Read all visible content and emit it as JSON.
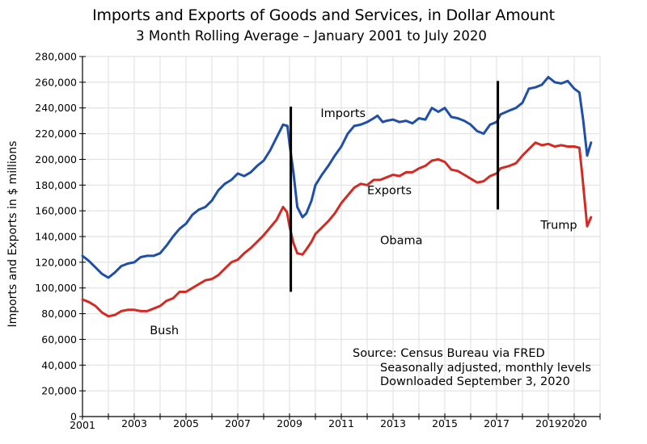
{
  "chart_data": {
    "type": "line",
    "title": "Imports and Exports of Goods and Services, in Dollar Amount",
    "subtitle": "3 Month Rolling Average – January 2001 to July 2020",
    "xlabel": "",
    "ylabel": "Imports and Exports in $ millions",
    "xlim": [
      2001,
      2021
    ],
    "ylim": [
      0,
      280000
    ],
    "grid": true,
    "x_tick_labels": [
      "2001",
      "2003",
      "2005",
      "2007",
      "2009",
      "2011",
      "2013",
      "2015",
      "2017",
      "2019",
      "2020"
    ],
    "x_tick_values": [
      2001,
      2003,
      2005,
      2007,
      2009,
      2011,
      2013,
      2015,
      2017,
      2019,
      2020
    ],
    "x_minor_ticks": [
      2002,
      2004,
      2006,
      2008,
      2010,
      2012,
      2014,
      2016,
      2018,
      2021
    ],
    "y_tick_labels": [
      "0",
      "20,000",
      "40,000",
      "60,000",
      "80,000",
      "100,000",
      "120,000",
      "140,000",
      "160,000",
      "180,000",
      "200,000",
      "220,000",
      "240,000",
      "260,000",
      "280,000"
    ],
    "y_tick_values": [
      0,
      20000,
      40000,
      60000,
      80000,
      100000,
      120000,
      140000,
      160000,
      180000,
      200000,
      220000,
      240000,
      260000,
      280000
    ],
    "series": [
      {
        "name": "Imports",
        "color": "#1f4fa8",
        "points": [
          [
            2001.0,
            125000
          ],
          [
            2001.25,
            121000
          ],
          [
            2001.5,
            116000
          ],
          [
            2001.75,
            111000
          ],
          [
            2002.0,
            108000
          ],
          [
            2002.25,
            112000
          ],
          [
            2002.5,
            117000
          ],
          [
            2002.75,
            119000
          ],
          [
            2003.0,
            120000
          ],
          [
            2003.25,
            124000
          ],
          [
            2003.5,
            125000
          ],
          [
            2003.75,
            125000
          ],
          [
            2004.0,
            127000
          ],
          [
            2004.25,
            133000
          ],
          [
            2004.5,
            140000
          ],
          [
            2004.75,
            146000
          ],
          [
            2005.0,
            150000
          ],
          [
            2005.25,
            157000
          ],
          [
            2005.5,
            161000
          ],
          [
            2005.75,
            163000
          ],
          [
            2006.0,
            168000
          ],
          [
            2006.25,
            176000
          ],
          [
            2006.5,
            181000
          ],
          [
            2006.75,
            184000
          ],
          [
            2007.0,
            189000
          ],
          [
            2007.25,
            187000
          ],
          [
            2007.5,
            190000
          ],
          [
            2007.75,
            195000
          ],
          [
            2008.0,
            199000
          ],
          [
            2008.25,
            207000
          ],
          [
            2008.5,
            217000
          ],
          [
            2008.75,
            227000
          ],
          [
            2008.92,
            226000
          ],
          [
            2009.0,
            212000
          ],
          [
            2009.15,
            190000
          ],
          [
            2009.3,
            163000
          ],
          [
            2009.5,
            155000
          ],
          [
            2009.65,
            158000
          ],
          [
            2009.85,
            168000
          ],
          [
            2010.0,
            180000
          ],
          [
            2010.25,
            188000
          ],
          [
            2010.5,
            195000
          ],
          [
            2010.75,
            203000
          ],
          [
            2011.0,
            210000
          ],
          [
            2011.25,
            220000
          ],
          [
            2011.5,
            226000
          ],
          [
            2011.75,
            227000
          ],
          [
            2012.0,
            229000
          ],
          [
            2012.25,
            232000
          ],
          [
            2012.4,
            234000
          ],
          [
            2012.6,
            229000
          ],
          [
            2012.75,
            230000
          ],
          [
            2013.0,
            231000
          ],
          [
            2013.25,
            229000
          ],
          [
            2013.5,
            230000
          ],
          [
            2013.75,
            228000
          ],
          [
            2014.0,
            232000
          ],
          [
            2014.25,
            231000
          ],
          [
            2014.5,
            240000
          ],
          [
            2014.75,
            237000
          ],
          [
            2015.0,
            240000
          ],
          [
            2015.25,
            233000
          ],
          [
            2015.5,
            232000
          ],
          [
            2015.75,
            230000
          ],
          [
            2016.0,
            227000
          ],
          [
            2016.25,
            222000
          ],
          [
            2016.5,
            220000
          ],
          [
            2016.75,
            227000
          ],
          [
            2017.0,
            229000
          ],
          [
            2017.15,
            235000
          ],
          [
            2017.5,
            238000
          ],
          [
            2017.75,
            240000
          ],
          [
            2018.0,
            244000
          ],
          [
            2018.25,
            255000
          ],
          [
            2018.5,
            256000
          ],
          [
            2018.75,
            258000
          ],
          [
            2019.0,
            264000
          ],
          [
            2019.25,
            260000
          ],
          [
            2019.5,
            259000
          ],
          [
            2019.75,
            261000
          ],
          [
            2020.0,
            255000
          ],
          [
            2020.2,
            252000
          ],
          [
            2020.35,
            230000
          ],
          [
            2020.5,
            203000
          ],
          [
            2020.65,
            213000
          ]
        ]
      },
      {
        "name": "Exports",
        "color": "#d42a24",
        "points": [
          [
            2001.0,
            91000
          ],
          [
            2001.25,
            89000
          ],
          [
            2001.5,
            86000
          ],
          [
            2001.75,
            81000
          ],
          [
            2002.0,
            78000
          ],
          [
            2002.25,
            79000
          ],
          [
            2002.5,
            82000
          ],
          [
            2002.75,
            83000
          ],
          [
            2003.0,
            83000
          ],
          [
            2003.25,
            82000
          ],
          [
            2003.5,
            82000
          ],
          [
            2003.75,
            84000
          ],
          [
            2004.0,
            86000
          ],
          [
            2004.25,
            90000
          ],
          [
            2004.5,
            92000
          ],
          [
            2004.75,
            97000
          ],
          [
            2005.0,
            97000
          ],
          [
            2005.25,
            100000
          ],
          [
            2005.5,
            103000
          ],
          [
            2005.75,
            106000
          ],
          [
            2006.0,
            107000
          ],
          [
            2006.25,
            110000
          ],
          [
            2006.5,
            115000
          ],
          [
            2006.75,
            120000
          ],
          [
            2007.0,
            122000
          ],
          [
            2007.25,
            127000
          ],
          [
            2007.5,
            131000
          ],
          [
            2007.75,
            136000
          ],
          [
            2008.0,
            141000
          ],
          [
            2008.25,
            147000
          ],
          [
            2008.5,
            153000
          ],
          [
            2008.75,
            163000
          ],
          [
            2008.9,
            159000
          ],
          [
            2009.0,
            148000
          ],
          [
            2009.15,
            135000
          ],
          [
            2009.3,
            127000
          ],
          [
            2009.5,
            126000
          ],
          [
            2009.65,
            130000
          ],
          [
            2009.85,
            136000
          ],
          [
            2010.0,
            142000
          ],
          [
            2010.25,
            147000
          ],
          [
            2010.5,
            152000
          ],
          [
            2010.75,
            158000
          ],
          [
            2011.0,
            166000
          ],
          [
            2011.25,
            172000
          ],
          [
            2011.5,
            178000
          ],
          [
            2011.75,
            181000
          ],
          [
            2012.0,
            180000
          ],
          [
            2012.25,
            184000
          ],
          [
            2012.5,
            184000
          ],
          [
            2012.75,
            186000
          ],
          [
            2013.0,
            188000
          ],
          [
            2013.25,
            187000
          ],
          [
            2013.5,
            190000
          ],
          [
            2013.75,
            190000
          ],
          [
            2014.0,
            193000
          ],
          [
            2014.25,
            195000
          ],
          [
            2014.5,
            199000
          ],
          [
            2014.75,
            200000
          ],
          [
            2015.0,
            198000
          ],
          [
            2015.25,
            192000
          ],
          [
            2015.5,
            191000
          ],
          [
            2015.75,
            188000
          ],
          [
            2016.0,
            185000
          ],
          [
            2016.25,
            182000
          ],
          [
            2016.5,
            183000
          ],
          [
            2016.75,
            187000
          ],
          [
            2017.0,
            189000
          ],
          [
            2017.15,
            193000
          ],
          [
            2017.5,
            195000
          ],
          [
            2017.75,
            197000
          ],
          [
            2018.0,
            203000
          ],
          [
            2018.25,
            208000
          ],
          [
            2018.5,
            213000
          ],
          [
            2018.75,
            211000
          ],
          [
            2019.0,
            212000
          ],
          [
            2019.25,
            210000
          ],
          [
            2019.5,
            211000
          ],
          [
            2019.75,
            210000
          ],
          [
            2020.0,
            210000
          ],
          [
            2020.2,
            209000
          ],
          [
            2020.3,
            190000
          ],
          [
            2020.5,
            148000
          ],
          [
            2020.65,
            155000
          ]
        ]
      }
    ],
    "vertical_markers": [
      {
        "name": "start-obama",
        "x": 2009.05,
        "y_range": [
          97000,
          241000
        ]
      },
      {
        "name": "start-trump",
        "x": 2017.05,
        "y_range": [
          161000,
          261000
        ]
      }
    ],
    "annotations": [
      {
        "name": "imports-label",
        "text": "Imports",
        "x": 2010.2,
        "y": 233000
      },
      {
        "name": "exports-label",
        "text": "Exports",
        "x": 2012.0,
        "y": 173000
      },
      {
        "name": "bush-label",
        "text": "Bush",
        "x": 2003.6,
        "y": 64000
      },
      {
        "name": "obama-label",
        "text": "Obama",
        "x": 2012.5,
        "y": 134000
      },
      {
        "name": "trump-label",
        "text": "Trump",
        "x": 2018.7,
        "y": 146000
      }
    ],
    "source_note": [
      "Source:  Census Bureau via FRED",
      "Seasonally adjusted, monthly levels",
      "Downloaded September 3, 2020"
    ]
  }
}
